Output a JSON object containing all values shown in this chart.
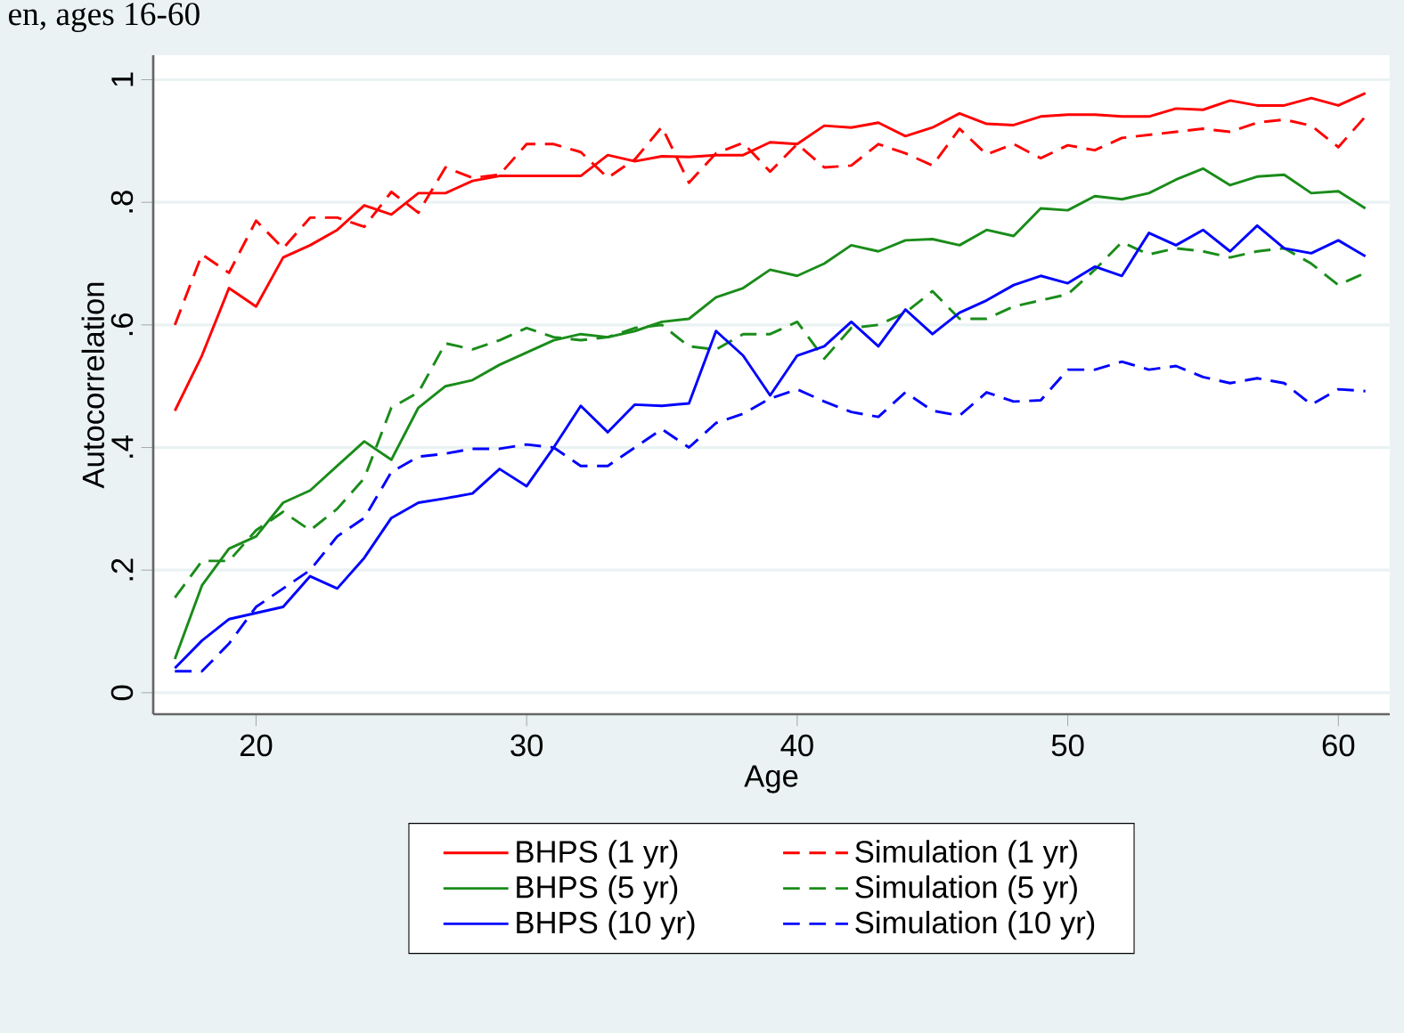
{
  "chart_data": {
    "type": "line",
    "title": "en, ages 16-60",
    "xlabel": "Age",
    "ylabel": "Autocorrelation",
    "x": [
      17,
      18,
      19,
      20,
      21,
      22,
      23,
      24,
      25,
      26,
      27,
      28,
      29,
      30,
      31,
      32,
      33,
      34,
      35,
      36,
      37,
      38,
      39,
      40,
      41,
      42,
      43,
      44,
      45,
      46,
      47,
      48,
      49,
      50,
      51,
      52,
      53,
      54,
      55,
      56,
      57,
      58,
      59,
      60,
      61
    ],
    "series": [
      {
        "name": "BHPS (1 yr)",
        "color": "#ff0000",
        "line_style": "solid",
        "values": [
          0.46,
          0.55,
          0.66,
          0.63,
          0.71,
          0.73,
          0.755,
          0.795,
          0.78,
          0.815,
          0.815,
          0.835,
          0.843,
          0.843,
          0.843,
          0.843,
          0.877,
          0.867,
          0.875,
          0.874,
          0.877,
          0.877,
          0.898,
          0.895,
          0.925,
          0.922,
          0.93,
          0.908,
          0.922,
          0.945,
          0.928,
          0.926,
          0.94,
          0.943,
          0.943,
          0.94,
          0.94,
          0.953,
          0.951,
          0.966,
          0.958,
          0.958,
          0.97,
          0.958,
          0.978
        ]
      },
      {
        "name": "Simulation (1 yr)",
        "color": "#ff0000",
        "line_style": "dashed",
        "values": [
          0.6,
          0.715,
          0.685,
          0.77,
          0.725,
          0.775,
          0.775,
          0.76,
          0.817,
          0.783,
          0.857,
          0.84,
          0.845,
          0.895,
          0.895,
          0.882,
          0.84,
          0.87,
          0.923,
          0.832,
          0.88,
          0.897,
          0.85,
          0.895,
          0.857,
          0.86,
          0.895,
          0.88,
          0.86,
          0.92,
          0.878,
          0.895,
          0.872,
          0.893,
          0.885,
          0.905,
          0.91,
          0.915,
          0.92,
          0.915,
          0.93,
          0.935,
          0.925,
          0.89,
          0.94
        ]
      },
      {
        "name": "BHPS (5 yr)",
        "color": "#1a8c1a",
        "line_style": "solid",
        "values": [
          0.055,
          0.175,
          0.235,
          0.255,
          0.31,
          0.33,
          0.37,
          0.41,
          0.38,
          0.465,
          0.5,
          0.51,
          0.535,
          0.555,
          0.575,
          0.585,
          0.58,
          0.59,
          0.605,
          0.61,
          0.645,
          0.66,
          0.69,
          0.68,
          0.7,
          0.73,
          0.72,
          0.738,
          0.74,
          0.73,
          0.755,
          0.745,
          0.79,
          0.787,
          0.81,
          0.805,
          0.815,
          0.837,
          0.855,
          0.828,
          0.842,
          0.845,
          0.815,
          0.818,
          0.79
        ]
      },
      {
        "name": "Simulation (5 yr)",
        "color": "#1a8c1a",
        "line_style": "dashed",
        "values": [
          0.155,
          0.215,
          0.215,
          0.265,
          0.295,
          0.265,
          0.3,
          0.35,
          0.465,
          0.49,
          0.57,
          0.56,
          0.575,
          0.595,
          0.58,
          0.575,
          0.58,
          0.595,
          0.6,
          0.565,
          0.56,
          0.585,
          0.585,
          0.605,
          0.545,
          0.595,
          0.6,
          0.62,
          0.655,
          0.61,
          0.61,
          0.63,
          0.64,
          0.65,
          0.69,
          0.735,
          0.715,
          0.725,
          0.72,
          0.71,
          0.72,
          0.725,
          0.7,
          0.665,
          0.685
        ]
      },
      {
        "name": "BHPS (10 yr)",
        "color": "#0000ff",
        "line_style": "solid",
        "values": [
          0.04,
          0.085,
          0.12,
          0.13,
          0.14,
          0.19,
          0.17,
          0.22,
          0.285,
          0.31,
          0.317,
          0.325,
          0.365,
          0.337,
          0.4,
          0.468,
          0.425,
          0.47,
          0.468,
          0.472,
          0.59,
          0.55,
          0.485,
          0.55,
          0.565,
          0.605,
          0.565,
          0.625,
          0.585,
          0.62,
          0.64,
          0.665,
          0.68,
          0.668,
          0.695,
          0.68,
          0.75,
          0.73,
          0.755,
          0.72,
          0.762,
          0.725,
          0.717,
          0.738,
          0.712
        ]
      },
      {
        "name": "Simulation (10 yr)",
        "color": "#0000ff",
        "line_style": "dashed",
        "values": [
          0.035,
          0.035,
          0.08,
          0.14,
          0.17,
          0.2,
          0.255,
          0.285,
          0.36,
          0.385,
          0.39,
          0.398,
          0.398,
          0.405,
          0.4,
          0.37,
          0.37,
          0.4,
          0.43,
          0.4,
          0.44,
          0.455,
          0.48,
          0.495,
          0.475,
          0.458,
          0.45,
          0.49,
          0.46,
          0.452,
          0.49,
          0.475,
          0.477,
          0.527,
          0.527,
          0.54,
          0.527,
          0.533,
          0.515,
          0.505,
          0.513,
          0.505,
          0.47,
          0.495,
          0.492
        ]
      }
    ],
    "xlim": [
      16.2,
      61.9
    ],
    "ylim": [
      -0.035,
      1.04
    ],
    "xticks": [
      20,
      30,
      40,
      50,
      60
    ],
    "yticks": [
      {
        "value": 0,
        "label": "0"
      },
      {
        "value": 0.2,
        "label": ".2"
      },
      {
        "value": 0.4,
        "label": ".4"
      },
      {
        "value": 0.6,
        "label": ".6"
      },
      {
        "value": 0.8,
        "label": ".8"
      },
      {
        "value": 1,
        "label": "1"
      }
    ],
    "grid": "y",
    "legend": "bottom",
    "marker": "none"
  }
}
